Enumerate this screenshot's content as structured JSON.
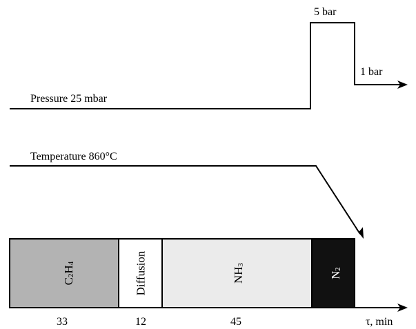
{
  "pressure": {
    "label": "Pressure 25 mbar",
    "high_label": "5 bar",
    "final_label": "1 bar"
  },
  "temperature": {
    "label": "Temperature 860°C"
  },
  "stages": [
    {
      "name": "C2H4",
      "base": "C",
      "sub1": "2",
      "mid": "H",
      "sub2": "4",
      "duration": "33",
      "color": "#b3b3b3",
      "text_color": "#000000"
    },
    {
      "name": "Diffusion",
      "duration": "12",
      "color": "#ffffff",
      "text_color": "#000000"
    },
    {
      "name": "NH3",
      "base": "NH",
      "sub1": "3",
      "duration": "45",
      "color": "#ebebeb",
      "text_color": "#000000"
    },
    {
      "name": "N2",
      "base": "N",
      "sub1": "2",
      "duration": "",
      "color": "#111111",
      "text_color": "#ffffff"
    }
  ],
  "time_axis": {
    "label": "τ, min"
  }
}
